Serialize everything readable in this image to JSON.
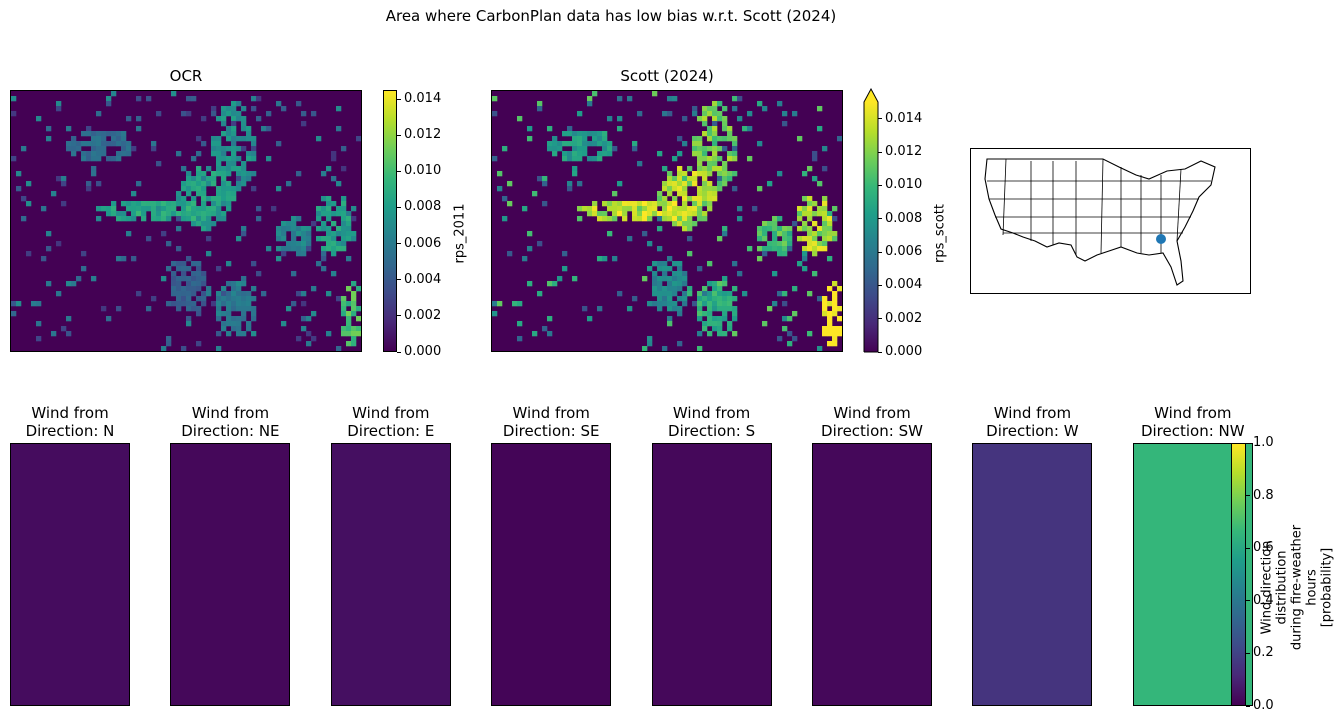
{
  "figure": {
    "suptitle": "Area where CarbonPlan data has low bias w.r.t. Scott (2024)"
  },
  "colors": {
    "viridis": [
      "#440154",
      "#482878",
      "#3e4a89",
      "#31688e",
      "#26828e",
      "#1f9e89",
      "#35b779",
      "#6ece58",
      "#b5de2b",
      "#fde725"
    ],
    "map_point": "#1f77b4",
    "background": "#440154"
  },
  "chart_data": [
    {
      "type": "heatmap",
      "title": "OCR",
      "colorbar_label": "rps_2011",
      "clim": [
        0,
        0.0145
      ],
      "ticks": [
        "0.000",
        "0.002",
        "0.004",
        "0.006",
        "0.008",
        "0.010",
        "0.012",
        "0.014"
      ]
    },
    {
      "type": "heatmap",
      "title": "Scott (2024)",
      "colorbar_label": "rps_scott",
      "clim": [
        0,
        0.015
      ],
      "extend": "max",
      "ticks": [
        "0.000",
        "0.002",
        "0.004",
        "0.006",
        "0.008",
        "0.010",
        "0.012",
        "0.014"
      ]
    },
    {
      "type": "map",
      "description_region": "United States",
      "marker": "point in the southeastern US"
    },
    {
      "type": "heatmap",
      "panels": [
        {
          "title_line1": "Wind from",
          "title_line2": "Direction: N",
          "value": 0.03
        },
        {
          "title_line1": "Wind from",
          "title_line2": "Direction: NE",
          "value": 0.02
        },
        {
          "title_line1": "Wind from",
          "title_line2": "Direction: E",
          "value": 0.04
        },
        {
          "title_line1": "Wind from",
          "title_line2": "Direction: SE",
          "value": 0.01
        },
        {
          "title_line1": "Wind from",
          "title_line2": "Direction: S",
          "value": 0.02
        },
        {
          "title_line1": "Wind from",
          "title_line2": "Direction: SW",
          "value": 0.02
        },
        {
          "title_line1": "Wind from",
          "title_line2": "Direction: W",
          "value": 0.15
        },
        {
          "title_line1": "Wind from",
          "title_line2": "Direction: NW",
          "value": 0.66
        }
      ],
      "colorbar_label_lines": [
        "Wind direction distribution",
        "during fire-weather hours",
        "[probability]"
      ],
      "clim": [
        0,
        1
      ],
      "ticks": [
        "0.0",
        "0.2",
        "0.4",
        "0.6",
        "0.8",
        "1.0"
      ]
    }
  ]
}
